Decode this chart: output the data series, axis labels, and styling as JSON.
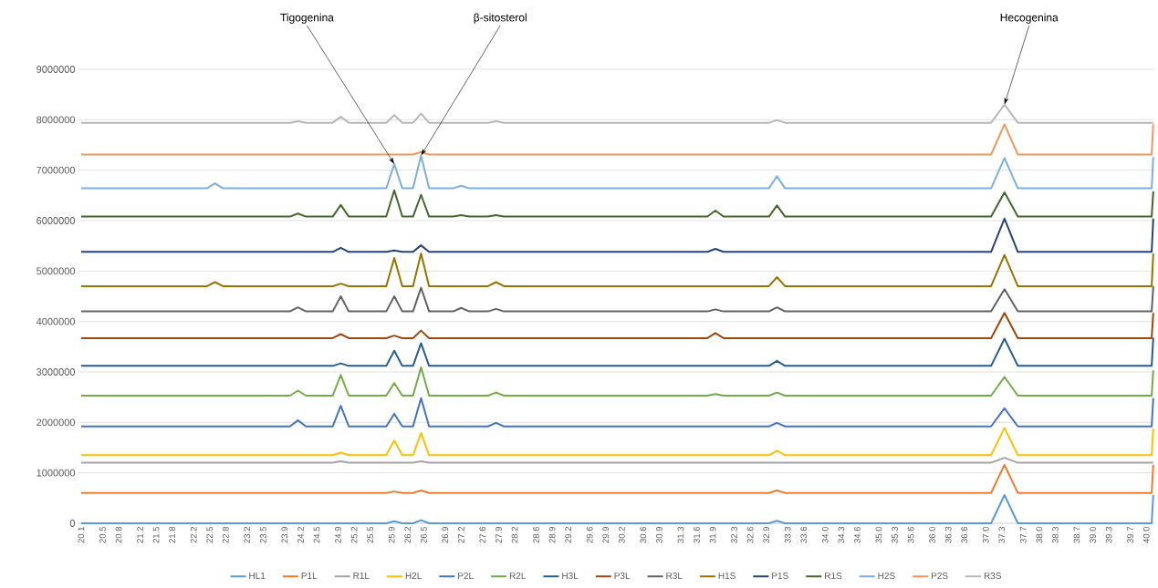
{
  "chart_data": {
    "type": "line",
    "x": [
      20.1,
      22.45,
      22.6,
      22.75,
      24.0,
      24.15,
      24.3,
      24.8,
      24.95,
      25.1,
      25.8,
      25.95,
      26.1,
      26.3,
      26.45,
      26.6,
      27.05,
      27.2,
      27.35,
      27.7,
      27.85,
      28.0,
      31.8,
      31.95,
      32.1,
      32.95,
      33.1,
      33.25,
      37.1,
      37.35,
      37.6,
      40.1,
      40.13
    ],
    "xlim": [
      20.05,
      40.15
    ],
    "ylim": [
      0,
      9000000
    ],
    "xticks": [
      20.1,
      20.5,
      20.8,
      21.2,
      21.5,
      21.8,
      22.2,
      22.5,
      22.8,
      23.2,
      23.5,
      23.9,
      24.2,
      24.5,
      24.9,
      25.2,
      25.5,
      25.9,
      26.2,
      26.5,
      26.9,
      27.2,
      27.6,
      27.9,
      28.2,
      28.6,
      28.9,
      29.2,
      29.6,
      29.9,
      30.2,
      30.6,
      30.9,
      31.3,
      31.6,
      31.9,
      32.3,
      32.6,
      32.9,
      33.3,
      33.6,
      {
        "value": 34.0,
        "label": "34.0"
      },
      34.3,
      34.6,
      {
        "value": 35.0,
        "label": "35.0"
      },
      35.3,
      35.6,
      {
        "value": 36.0,
        "label": "36.0"
      },
      36.3,
      36.6,
      {
        "value": 37.0,
        "label": "37.0"
      },
      37.3,
      37.7,
      {
        "value": 38.0,
        "label": "38.0"
      },
      38.3,
      38.7,
      {
        "value": 39.0,
        "label": "39.0"
      },
      39.3,
      39.7,
      {
        "value": 40.0,
        "label": "40.0"
      }
    ],
    "yticks": [
      0,
      1000000,
      2000000,
      3000000,
      4000000,
      5000000,
      6000000,
      7000000,
      8000000,
      9000000
    ],
    "grid": "y",
    "legend": "bottom",
    "marker": "none",
    "line_style": "solid",
    "annotations": [
      {
        "text": "Tigogenina",
        "x": 25.95,
        "y": 7120000
      },
      {
        "text": "β-sitosterol",
        "x": 26.45,
        "y": 7290000
      },
      {
        "text": "Hecogenina",
        "x": 37.35,
        "y": 8300000
      }
    ],
    "series": [
      {
        "name": "HL1",
        "color": "#5b9bd5",
        "values": [
          0,
          0,
          0,
          0,
          0,
          0,
          0,
          0,
          0,
          0,
          0,
          40000,
          0,
          0,
          60000,
          0,
          0,
          0,
          0,
          0,
          0,
          0,
          0,
          0,
          0,
          0,
          50000,
          0,
          0,
          560000,
          0,
          0,
          560000
        ]
      },
      {
        "name": "P1L",
        "color": "#ed7d31",
        "values": [
          600000,
          600000,
          600000,
          600000,
          600000,
          600000,
          600000,
          600000,
          600000,
          600000,
          600000,
          630000,
          600000,
          600000,
          650000,
          600000,
          600000,
          600000,
          600000,
          600000,
          600000,
          600000,
          600000,
          600000,
          600000,
          600000,
          650000,
          600000,
          600000,
          1160000,
          600000,
          600000,
          1160000
        ]
      },
      {
        "name": "R1L",
        "color": "#a5a5a5",
        "values": [
          1200000,
          1200000,
          1200000,
          1200000,
          1200000,
          1200000,
          1200000,
          1200000,
          1230000,
          1200000,
          1200000,
          1200000,
          1200000,
          1200000,
          1230000,
          1200000,
          1200000,
          1200000,
          1200000,
          1200000,
          1200000,
          1200000,
          1200000,
          1200000,
          1200000,
          1200000,
          1200000,
          1200000,
          1200000,
          1300000,
          1200000,
          1200000,
          1200000
        ]
      },
      {
        "name": "H2L",
        "color": "#ffc000",
        "values": [
          1350000,
          1350000,
          1350000,
          1350000,
          1350000,
          1350000,
          1350000,
          1350000,
          1400000,
          1350000,
          1350000,
          1640000,
          1350000,
          1350000,
          1790000,
          1350000,
          1350000,
          1350000,
          1350000,
          1350000,
          1350000,
          1350000,
          1350000,
          1350000,
          1350000,
          1350000,
          1440000,
          1350000,
          1350000,
          1890000,
          1350000,
          1350000,
          1880000
        ]
      },
      {
        "name": "P2L",
        "color": "#4472c4",
        "values": [
          1920000,
          1920000,
          1920000,
          1920000,
          1920000,
          2040000,
          1920000,
          1920000,
          2330000,
          1920000,
          1920000,
          2170000,
          1920000,
          1920000,
          2480000,
          1920000,
          1920000,
          1920000,
          1920000,
          1920000,
          1990000,
          1920000,
          1920000,
          1920000,
          1920000,
          1920000,
          1990000,
          1920000,
          1920000,
          2280000,
          1920000,
          1920000,
          2480000
        ]
      },
      {
        "name": "R2L",
        "color": "#70ad47",
        "values": [
          2530000,
          2530000,
          2530000,
          2530000,
          2530000,
          2630000,
          2530000,
          2530000,
          2940000,
          2530000,
          2530000,
          2780000,
          2530000,
          2530000,
          3090000,
          2530000,
          2530000,
          2530000,
          2530000,
          2530000,
          2590000,
          2530000,
          2530000,
          2560000,
          2530000,
          2530000,
          2590000,
          2530000,
          2530000,
          2900000,
          2530000,
          2530000,
          3030000
        ]
      },
      {
        "name": "H3L",
        "color": "#255e91",
        "values": [
          3120000,
          3120000,
          3120000,
          3120000,
          3120000,
          3120000,
          3120000,
          3120000,
          3170000,
          3120000,
          3120000,
          3420000,
          3120000,
          3120000,
          3570000,
          3120000,
          3120000,
          3120000,
          3120000,
          3120000,
          3120000,
          3120000,
          3120000,
          3120000,
          3120000,
          3120000,
          3220000,
          3120000,
          3120000,
          3660000,
          3120000,
          3120000,
          3680000
        ]
      },
      {
        "name": "P3L",
        "color": "#9e480e",
        "values": [
          3670000,
          3670000,
          3670000,
          3670000,
          3670000,
          3670000,
          3670000,
          3670000,
          3750000,
          3670000,
          3670000,
          3720000,
          3670000,
          3670000,
          3820000,
          3670000,
          3670000,
          3670000,
          3670000,
          3670000,
          3670000,
          3670000,
          3670000,
          3770000,
          3670000,
          3670000,
          3670000,
          3670000,
          3670000,
          4170000,
          3670000,
          3670000,
          4170000
        ]
      },
      {
        "name": "R3L",
        "color": "#636363",
        "values": [
          4200000,
          4200000,
          4200000,
          4200000,
          4200000,
          4280000,
          4200000,
          4200000,
          4500000,
          4200000,
          4200000,
          4500000,
          4200000,
          4200000,
          4670000,
          4200000,
          4200000,
          4270000,
          4200000,
          4200000,
          4250000,
          4200000,
          4200000,
          4240000,
          4200000,
          4200000,
          4280000,
          4200000,
          4200000,
          4640000,
          4200000,
          4200000,
          4700000
        ]
      },
      {
        "name": "H1S",
        "color": "#997300",
        "values": [
          4700000,
          4700000,
          4780000,
          4700000,
          4700000,
          4700000,
          4700000,
          4700000,
          4750000,
          4700000,
          4700000,
          5260000,
          4700000,
          4700000,
          5350000,
          4700000,
          4700000,
          4700000,
          4700000,
          4700000,
          4780000,
          4700000,
          4700000,
          4700000,
          4700000,
          4700000,
          4880000,
          4700000,
          4700000,
          5320000,
          4700000,
          4700000,
          5350000
        ]
      },
      {
        "name": "P1S",
        "color": "#264478",
        "values": [
          5380000,
          5380000,
          5380000,
          5380000,
          5380000,
          5380000,
          5380000,
          5380000,
          5460000,
          5380000,
          5380000,
          5410000,
          5380000,
          5380000,
          5510000,
          5380000,
          5380000,
          5380000,
          5380000,
          5380000,
          5380000,
          5380000,
          5380000,
          5440000,
          5380000,
          5380000,
          5380000,
          5380000,
          5380000,
          6040000,
          5380000,
          5380000,
          6040000
        ]
      },
      {
        "name": "R1S",
        "color": "#43682b",
        "values": [
          6080000,
          6080000,
          6080000,
          6080000,
          6080000,
          6140000,
          6080000,
          6080000,
          6310000,
          6080000,
          6080000,
          6600000,
          6080000,
          6080000,
          6510000,
          6080000,
          6080000,
          6110000,
          6080000,
          6080000,
          6110000,
          6080000,
          6080000,
          6200000,
          6080000,
          6080000,
          6300000,
          6080000,
          6080000,
          6560000,
          6080000,
          6080000,
          6580000
        ]
      },
      {
        "name": "H2S",
        "color": "#7cafdd",
        "values": [
          6640000,
          6640000,
          6740000,
          6640000,
          6640000,
          6640000,
          6640000,
          6640000,
          6640000,
          6640000,
          6640000,
          7120000,
          6640000,
          6640000,
          7290000,
          6640000,
          6640000,
          6690000,
          6640000,
          6640000,
          6640000,
          6640000,
          6640000,
          6640000,
          6640000,
          6640000,
          6880000,
          6640000,
          6640000,
          7240000,
          6640000,
          6640000,
          7260000
        ]
      },
      {
        "name": "P2S",
        "color": "#f1975a",
        "values": [
          7310000,
          7310000,
          7310000,
          7310000,
          7310000,
          7310000,
          7310000,
          7310000,
          7310000,
          7310000,
          7310000,
          7310000,
          7310000,
          7310000,
          7360000,
          7310000,
          7310000,
          7310000,
          7310000,
          7310000,
          7310000,
          7310000,
          7310000,
          7310000,
          7310000,
          7310000,
          7310000,
          7310000,
          7310000,
          7910000,
          7310000,
          7310000,
          7910000
        ]
      },
      {
        "name": "R3S",
        "color": "#b7b7b7",
        "values": [
          7940000,
          7940000,
          7940000,
          7940000,
          7940000,
          7970000,
          7940000,
          7940000,
          8060000,
          7940000,
          7940000,
          8090000,
          7940000,
          7940000,
          8120000,
          7940000,
          7940000,
          7940000,
          7940000,
          7940000,
          7970000,
          7940000,
          7940000,
          7940000,
          7940000,
          7940000,
          7990000,
          7940000,
          7940000,
          8300000,
          7940000,
          7940000,
          7940000
        ]
      }
    ]
  }
}
